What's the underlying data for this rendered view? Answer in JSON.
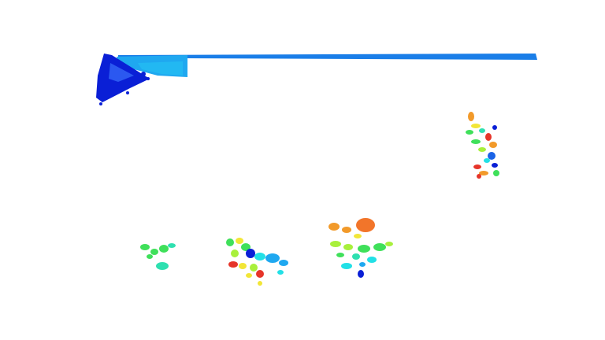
{
  "scene": {
    "background": "#ffffff",
    "description_free": true
  },
  "colors": {
    "deep_blue": "#0a1fd6",
    "blue": "#1a63e6",
    "sky": "#1fa8f0",
    "cyan": "#22e0e6",
    "teal": "#2ee0b0",
    "green": "#3fe05a",
    "lime": "#a8f03c",
    "yellow": "#f2e637",
    "orange": "#f29a2a",
    "red": "#e6352a"
  }
}
